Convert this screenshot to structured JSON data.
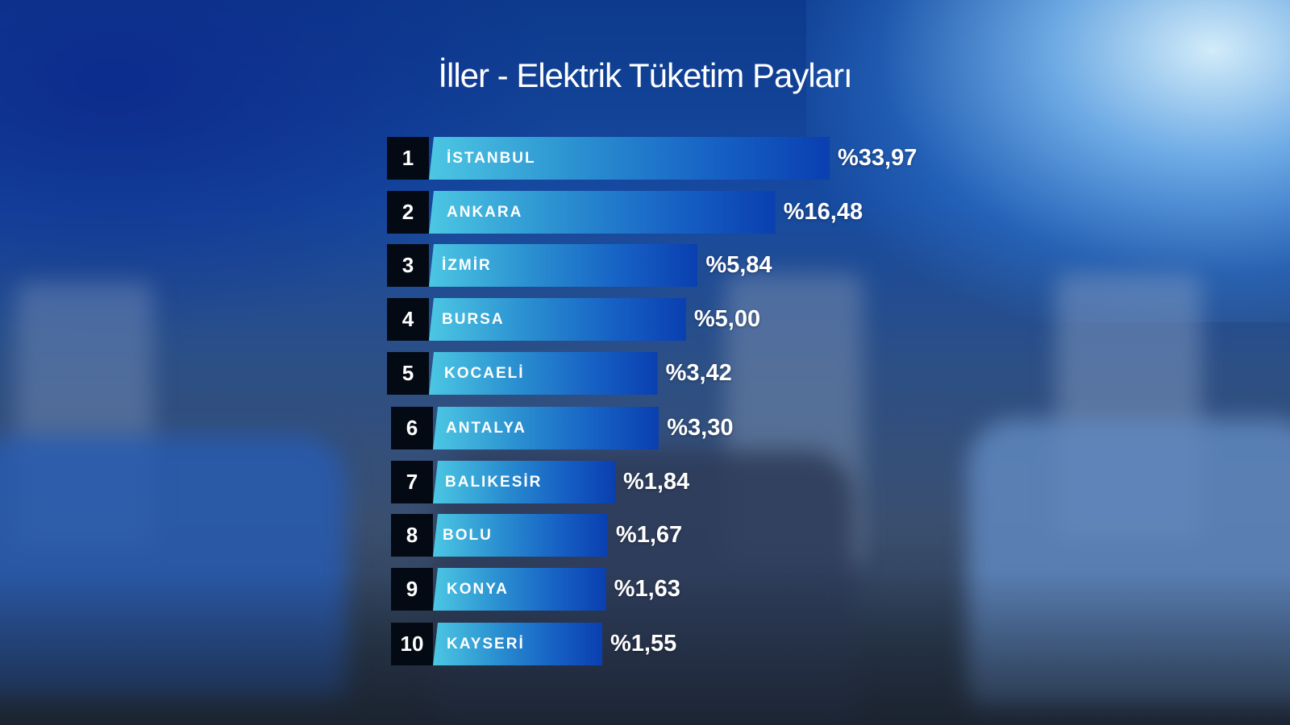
{
  "chart_data": {
    "type": "bar",
    "orientation": "horizontal",
    "title": "İller - Elektrik Tüketim Payları",
    "value_prefix": "%",
    "ranks": [
      "1",
      "2",
      "3",
      "4",
      "5",
      "6",
      "7",
      "8",
      "9",
      "10"
    ],
    "categories": [
      "İSTANBUL",
      "ANKARA",
      "İZMİR",
      "BURSA",
      "KOCAELİ",
      "ANTALYA",
      "BALIKESİR",
      "BOLU",
      "KONYA",
      "KAYSERİ"
    ],
    "values": [
      33.97,
      16.48,
      5.84,
      5.0,
      3.42,
      3.3,
      1.84,
      1.67,
      1.63,
      1.55
    ],
    "value_labels": [
      "%33,97",
      "%16,48",
      "%5,84",
      "%5,00",
      "%3,42",
      "%3,30",
      "%1,84",
      "%1,67",
      "%1,63",
      "%1,55"
    ],
    "colors": {
      "bar_start": "#4cc7e3",
      "bar_end": "#0a3fb0",
      "rank_box": "#040a14",
      "text": "#ffffff"
    }
  }
}
